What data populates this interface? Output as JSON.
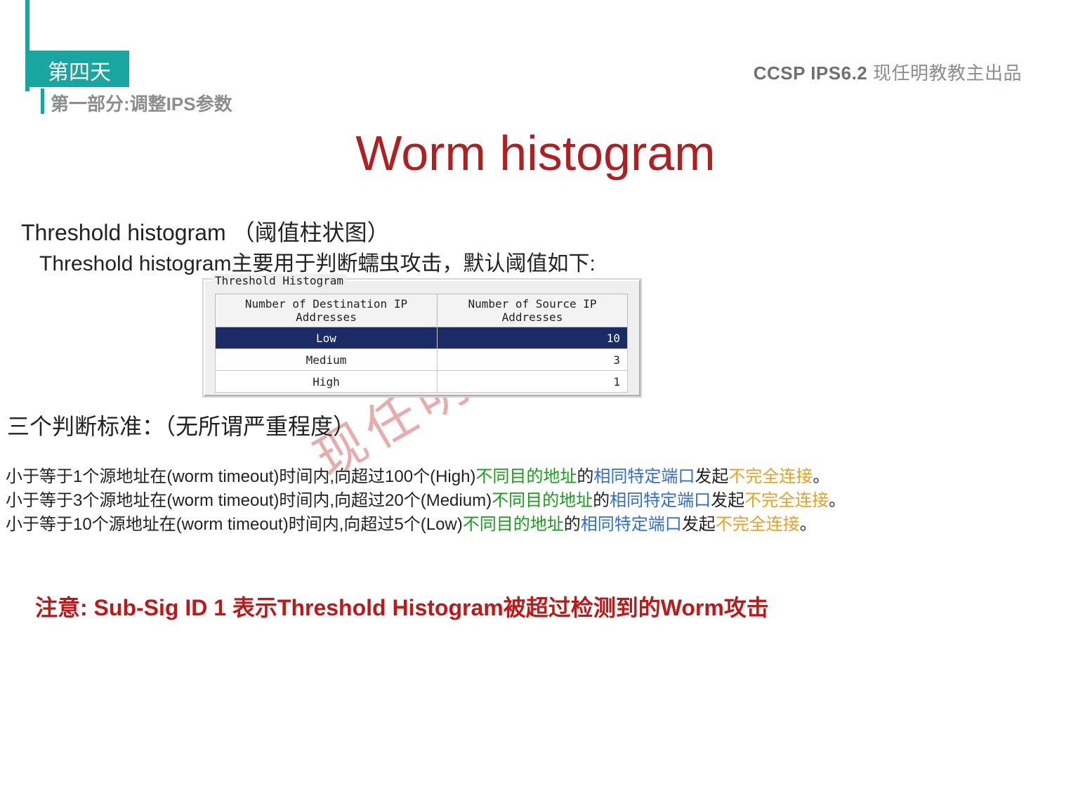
{
  "header": {
    "day_label": "第四天",
    "part_label": "第一部分:调整IPS参数",
    "top_right_bold": "CCSP IPS6.2",
    "top_right_tail": " 现任明教教主出品"
  },
  "title": "Worm histogram",
  "subtitle": {
    "line1_en": "Threshold histogram",
    "line1_cn": "（阈值柱状图）",
    "line2": "Threshold histogram主要用于判断蠕虫攻击，默认阈值如下:"
  },
  "dialog": {
    "title": "Threshold Histogram",
    "columns": [
      "Number of Destination IP Addresses",
      "Number of Source IP Addresses"
    ],
    "rows": [
      {
        "label": "Low",
        "value": "10",
        "selected": true
      },
      {
        "label": "Medium",
        "value": "3",
        "selected": false
      },
      {
        "label": "High",
        "value": "1",
        "selected": false
      }
    ],
    "colors": {
      "background": "#efefef",
      "header_bg": "#f3f3f3",
      "selected_bg": "#1a2b66",
      "selected_text": "#ffffff",
      "border": "#b9b9b9"
    }
  },
  "criteria_heading": "三个判断标准：（无所谓严重程度）",
  "criteria": {
    "line1": {
      "p1": "小于等于1个源地址在(worm timeout)时间内,向超过100个(High)",
      "g": "不同目的地址",
      "p2": "的",
      "b": "相同特定端口",
      "p3": "发起",
      "o": "不完全连接",
      "p4": "。"
    },
    "line2": {
      "p1": "小于等于3个源地址在(worm timeout)时间内,向超过20个(Medium)",
      "g": "不同目的地址",
      "p2": "的",
      "b": "相同特定端口",
      "p3": "发起",
      "o": "不完全连接",
      "p4": "。"
    },
    "line3": {
      "p1": "小于等于10个源地址在(worm timeout)时间内,向超过5个(Low)",
      "g": "不同目的地址",
      "p2": "的",
      "b": "相同特定端口",
      "p3": "发起",
      "o": "不完全连接",
      "p4": "。"
    }
  },
  "note": "注意: Sub-Sig ID 1 表示Threshold Histogram被超过检测到的Worm攻击",
  "watermark": "现任明教教主",
  "colors": {
    "accent": "#1aa6a0",
    "title": "#b02020",
    "header_text": "#8a8f8b",
    "body": "#222222",
    "note": "#c01818",
    "green": "#1a9d1a",
    "blue": "#2f6ed8",
    "orange": "#e8a020"
  }
}
